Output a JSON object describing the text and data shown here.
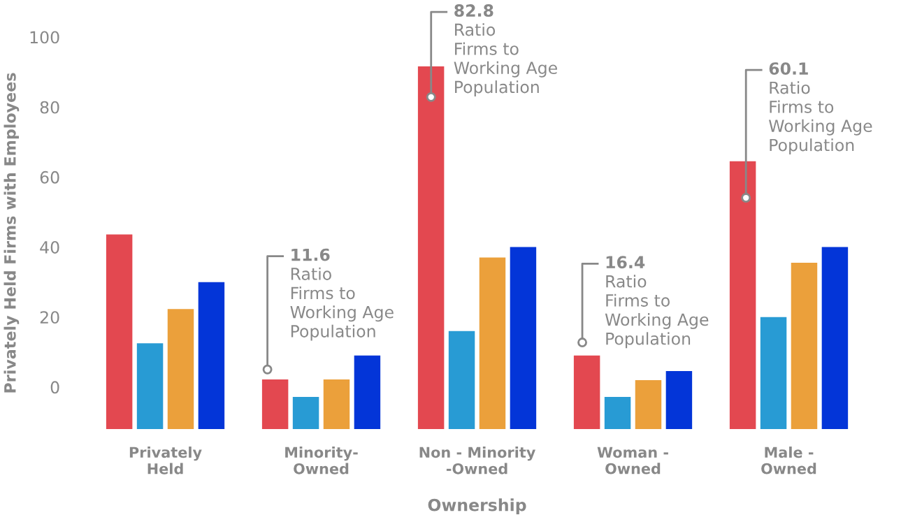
{
  "chart_data": {
    "type": "bar",
    "xlabel": "Ownership",
    "ylabel": "Privately Held Firms with Employees",
    "categories": [
      "Privately\nHeld",
      "Minority-\nOwned",
      "Non - Minority\n-Owned",
      "Woman -\nOwned",
      "Male -\nOwned"
    ],
    "series": [
      {
        "color": "#e34850",
        "base": [
          -12,
          -12,
          -12,
          -12,
          -12
        ],
        "values": [
          55.6,
          14.2,
          103.6,
          21,
          76.5
        ]
      },
      {
        "color": "#289bd4",
        "base": [
          -12,
          -12,
          -12,
          -12,
          -12
        ],
        "values": [
          24.5,
          9.2,
          28,
          9.2,
          32
        ]
      },
      {
        "color": "#eba03b",
        "base": [
          -12,
          -12,
          -12,
          -12,
          -12
        ],
        "values": [
          34.3,
          14.2,
          49,
          14,
          47.5
        ]
      },
      {
        "color": "#0335d8",
        "base": [
          -12,
          -12,
          -12,
          -12,
          -12
        ],
        "values": [
          42,
          21,
          52,
          16.6,
          52
        ]
      }
    ],
    "ylim": [
      -12,
      100
    ],
    "yticks": [
      0,
      20,
      40,
      60,
      80,
      100
    ],
    "grid": false,
    "annotations": [
      "11.6\nRatio\nFirms to\nWorking Age\nPopulation",
      "82.8\nRatio\nFirms to\nWorking Age\nPopulation",
      "16.4\nRatio\nFirms to\nWorking Age\nPopulation",
      "60.1\nRatio\nFirms to\nWorking Age\nPopulation"
    ]
  }
}
